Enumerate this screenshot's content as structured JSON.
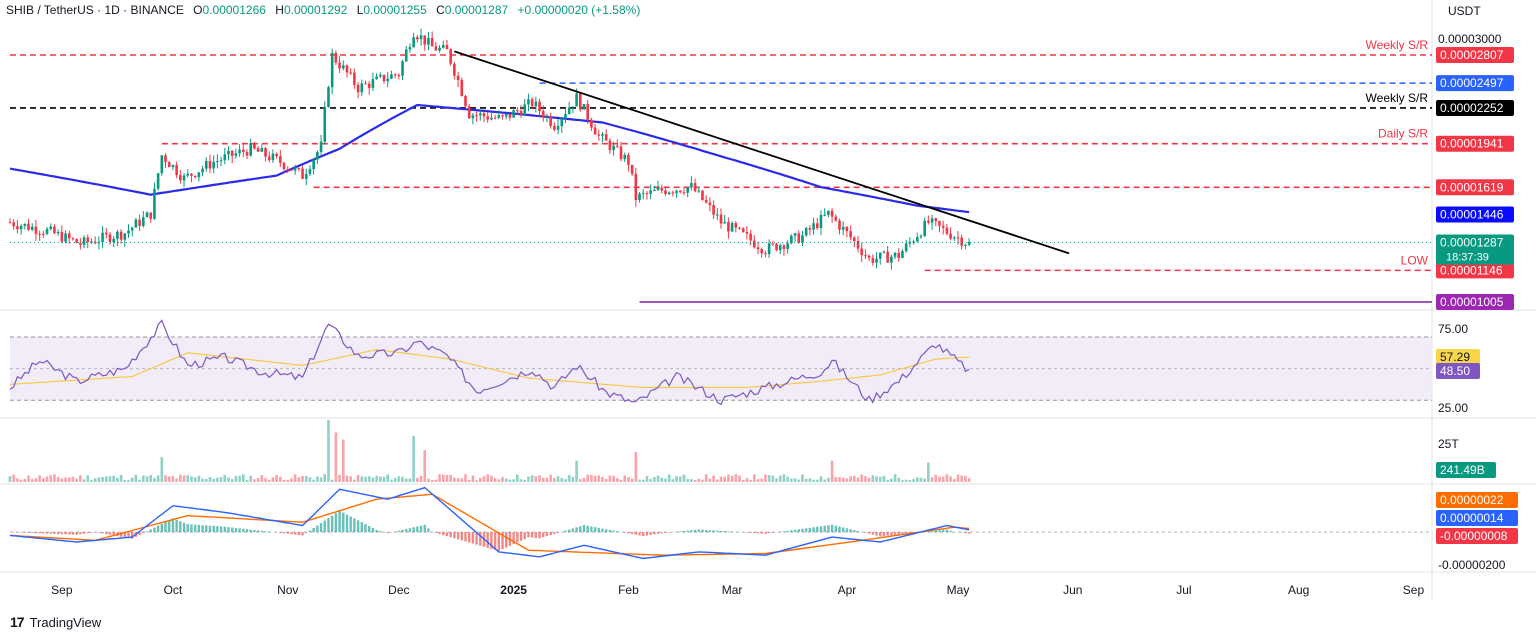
{
  "header": {
    "symbol": "SHIB / TetherUS · 1D · BINANCE",
    "o_label": "O",
    "o": "0.00001266",
    "h_label": "H",
    "h": "0.00001292",
    "l_label": "L",
    "l": "0.00001255",
    "c_label": "C",
    "c": "0.00001287",
    "change": "+0.00000020 (+1.58%)"
  },
  "currency": "USDT",
  "branding": "TradingView",
  "colors": {
    "up": "#089981",
    "down": "#f23645",
    "sma": "#2a2ae8",
    "trend": "#000000",
    "blue_level": "#2962ff",
    "low_level": "#7b1fa2",
    "rsi": "#7e57c2",
    "rsi_ma": "#f7c948",
    "macd": "#2962ff",
    "signal": "#ff6d00"
  },
  "chart_data": {
    "type": "candlestick",
    "x_axis": {
      "labels": [
        "Sep",
        "Oct",
        "Nov",
        "Dec",
        "2025",
        "Feb",
        "Mar",
        "Apr",
        "May",
        "Jun",
        "Jul",
        "Aug",
        "Sep"
      ],
      "bold_label": "2025",
      "start": "2024-08-18",
      "end": "2025-09-06"
    },
    "y_axis": {
      "scale": "log",
      "ticks": [
        "0.00003000"
      ],
      "range": [
        9.8e-06,
        3.22e-05
      ]
    },
    "price_anchors": [
      [
        "2024-08-18",
        1.4e-05
      ],
      [
        "2024-08-28",
        1.35e-05
      ],
      [
        "2024-09-06",
        1.28e-05
      ],
      [
        "2024-09-18",
        1.34e-05
      ],
      [
        "2024-09-25",
        1.45e-05
      ],
      [
        "2024-09-28",
        1.85e-05
      ],
      [
        "2024-10-04",
        1.68e-05
      ],
      [
        "2024-10-12",
        1.8e-05
      ],
      [
        "2024-10-22",
        1.9e-05
      ],
      [
        "2024-10-30",
        1.8e-05
      ],
      [
        "2024-11-05",
        1.7e-05
      ],
      [
        "2024-11-10",
        1.92e-05
      ],
      [
        "2024-11-13",
        2.8e-05
      ],
      [
        "2024-11-20",
        2.45e-05
      ],
      [
        "2024-11-27",
        2.55e-05
      ],
      [
        "2024-12-01",
        2.6e-05
      ],
      [
        "2024-12-05",
        3.1e-05
      ],
      [
        "2024-12-10",
        2.9e-05
      ],
      [
        "2024-12-14",
        2.85e-05
      ],
      [
        "2024-12-20",
        2.2e-05
      ],
      [
        "2024-12-29",
        2.15e-05
      ],
      [
        "2025-01-06",
        2.3e-05
      ],
      [
        "2025-01-12",
        2.1e-05
      ],
      [
        "2025-01-18",
        2.35e-05
      ],
      [
        "2025-01-24",
        2e-05
      ],
      [
        "2025-02-01",
        1.8e-05
      ],
      [
        "2025-02-03",
        1.55e-05
      ],
      [
        "2025-02-10",
        1.6e-05
      ],
      [
        "2025-02-18",
        1.62e-05
      ],
      [
        "2025-02-26",
        1.4e-05
      ],
      [
        "2025-03-10",
        1.25e-05
      ],
      [
        "2025-03-20",
        1.32e-05
      ],
      [
        "2025-03-27",
        1.45e-05
      ],
      [
        "2025-04-07",
        1.2e-05
      ],
      [
        "2025-04-15",
        1.22e-05
      ],
      [
        "2025-04-23",
        1.4e-05
      ],
      [
        "2025-05-04",
        1.28e-05
      ]
    ],
    "sma200_anchors": [
      [
        "2024-08-18",
        1.75e-05
      ],
      [
        "2024-09-25",
        1.57e-05
      ],
      [
        "2024-10-29",
        1.7e-05
      ],
      [
        "2024-11-15",
        1.9e-05
      ],
      [
        "2024-12-06",
        2.28e-05
      ],
      [
        "2025-01-01",
        2.2e-05
      ],
      [
        "2025-01-25",
        2.12e-05
      ],
      [
        "2025-02-25",
        1.85e-05
      ],
      [
        "2025-03-25",
        1.62e-05
      ],
      [
        "2025-04-20",
        1.5e-05
      ],
      [
        "2025-05-04",
        1.46e-05
      ]
    ],
    "trendline": {
      "from": [
        "2024-12-16",
        2.85e-05
      ],
      "to": [
        "2025-05-31",
        1.23e-05
      ],
      "color": "#000000"
    },
    "levels": [
      {
        "value": 2.807e-05,
        "label": "Weekly S/R",
        "price_label": "0.00002807",
        "color": "#f23645",
        "style": "dashed",
        "from": "2024-08-18",
        "label_bg": "#f23645"
      },
      {
        "value": 2.497e-05,
        "label": "",
        "price_label": "0.00002497",
        "color": "#2962ff",
        "style": "dashed",
        "from": "2025-01-08",
        "label_bg": "#2962ff"
      },
      {
        "value": 2.252e-05,
        "label": "Weekly S/R",
        "price_label": "0.00002252",
        "color": "#000000",
        "style": "dashed",
        "from": "2024-08-18",
        "label_bg": "#000000"
      },
      {
        "value": 1.941e-05,
        "label": "Daily S/R",
        "price_label": "0.00001941",
        "color": "#f23645",
        "style": "dashed",
        "from": "2024-09-28",
        "label_bg": "#f23645"
      },
      {
        "value": 1.619e-05,
        "label": "",
        "price_label": "0.00001619",
        "color": "#f23645",
        "style": "dashed",
        "from": "2024-11-08",
        "label_bg": "#f23645"
      },
      {
        "value": 1.146e-05,
        "label": "LOW",
        "price_label": "0.00001146",
        "color": "#f23645",
        "style": "dashed",
        "from": "2025-04-22",
        "label_bg": "#f23645"
      },
      {
        "value": 1.005e-05,
        "label": "",
        "price_label": "0.00001005",
        "color": "#7b1fa2",
        "style": "solid",
        "from": "2025-02-04",
        "label_bg": "#9c27b0"
      }
    ],
    "badges": [
      {
        "value": 1.446e-05,
        "text": "0.00001446",
        "bg": "#0b0bff"
      },
      {
        "value": 1.287e-05,
        "text": "0.00001287",
        "sub": "18:37:39",
        "bg": "#089981"
      }
    ],
    "rsi": {
      "band": [
        30,
        70
      ],
      "ticks": [
        "75.00",
        "25.00"
      ],
      "tick_values": [
        75,
        25
      ],
      "value": "48.50",
      "ma_value": "57.29",
      "anchors": [
        [
          "2024-08-18",
          38
        ],
        [
          "2024-08-26",
          55
        ],
        [
          "2024-09-05",
          42
        ],
        [
          "2024-09-18",
          50
        ],
        [
          "2024-09-28",
          78
        ],
        [
          "2024-10-05",
          52
        ],
        [
          "2024-10-15",
          57
        ],
        [
          "2024-10-25",
          48
        ],
        [
          "2024-11-05",
          44
        ],
        [
          "2024-11-12",
          78
        ],
        [
          "2024-11-20",
          58
        ],
        [
          "2024-12-01",
          60
        ],
        [
          "2024-12-06",
          67
        ],
        [
          "2024-12-14",
          58
        ],
        [
          "2024-12-22",
          36
        ],
        [
          "2025-01-06",
          50
        ],
        [
          "2025-01-12",
          38
        ],
        [
          "2025-01-18",
          52
        ],
        [
          "2025-01-26",
          35
        ],
        [
          "2025-02-03",
          28
        ],
        [
          "2025-02-14",
          45
        ],
        [
          "2025-02-26",
          30
        ],
        [
          "2025-03-10",
          38
        ],
        [
          "2025-03-25",
          48
        ],
        [
          "2025-03-28",
          55
        ],
        [
          "2025-04-07",
          30
        ],
        [
          "2025-04-15",
          42
        ],
        [
          "2025-04-25",
          66
        ],
        [
          "2025-05-04",
          48.5
        ]
      ],
      "ma_anchors": [
        [
          "2024-08-18",
          40
        ],
        [
          "2024-09-20",
          45
        ],
        [
          "2024-10-05",
          60
        ],
        [
          "2024-11-05",
          52
        ],
        [
          "2024-11-25",
          62
        ],
        [
          "2024-12-15",
          56
        ],
        [
          "2025-01-05",
          44
        ],
        [
          "2025-02-05",
          38
        ],
        [
          "2025-03-05",
          38
        ],
        [
          "2025-03-25",
          42
        ],
        [
          "2025-04-10",
          46
        ],
        [
          "2025-04-25",
          56
        ],
        [
          "2025-05-04",
          57.29
        ]
      ]
    },
    "volume": {
      "tick": "25T",
      "value_label": "241.49B",
      "max": 35,
      "spikes": [
        [
          "2024-09-28",
          14
        ],
        [
          "2024-11-12",
          35
        ],
        [
          "2024-11-14",
          28
        ],
        [
          "2024-11-16",
          24
        ],
        [
          "2024-12-05",
          26
        ],
        [
          "2024-12-08",
          18
        ],
        [
          "2025-02-03",
          17
        ],
        [
          "2025-01-18",
          12
        ],
        [
          "2025-03-28",
          12
        ],
        [
          "2025-04-23",
          11
        ]
      ]
    },
    "macd": {
      "values": [
        {
          "text": "0.00000022",
          "bg": "#ff6d00"
        },
        {
          "text": "0.00000014",
          "bg": "#2962ff"
        },
        {
          "text": "-0.00000008",
          "bg": "#f23645"
        }
      ],
      "tick": "-0.00000200",
      "tick_value": -2e-06,
      "range": [
        -2.3e-06,
        2.8e-06
      ],
      "macd_anchors": [
        [
          "2024-08-18",
          -2e-07
        ],
        [
          "2024-09-05",
          -6e-07
        ],
        [
          "2024-09-20",
          -3e-07
        ],
        [
          "2024-10-01",
          1.6e-06
        ],
        [
          "2024-10-15",
          1.2e-06
        ],
        [
          "2024-11-05",
          4e-07
        ],
        [
          "2024-11-15",
          2.6e-06
        ],
        [
          "2024-11-28",
          2e-06
        ],
        [
          "2024-12-08",
          2.7e-06
        ],
        [
          "2024-12-28",
          -1.2e-06
        ],
        [
          "2025-01-08",
          -1.5e-06
        ],
        [
          "2025-01-20",
          -8e-07
        ],
        [
          "2025-02-05",
          -1.6e-06
        ],
        [
          "2025-02-20",
          -1.2e-06
        ],
        [
          "2025-03-10",
          -1.4e-06
        ],
        [
          "2025-03-28",
          -3e-07
        ],
        [
          "2025-04-10",
          -6e-07
        ],
        [
          "2025-04-28",
          4e-07
        ],
        [
          "2025-05-04",
          1.4e-07
        ]
      ],
      "signal_anchors": [
        [
          "2024-08-18",
          -2e-07
        ],
        [
          "2024-09-10",
          -5e-07
        ],
        [
          "2024-10-05",
          1e-06
        ],
        [
          "2024-11-05",
          6e-07
        ],
        [
          "2024-11-25",
          2e-06
        ],
        [
          "2024-12-10",
          2.3e-06
        ],
        [
          "2025-01-05",
          -1.1e-06
        ],
        [
          "2025-02-10",
          -1.4e-06
        ],
        [
          "2025-03-10",
          -1.3e-06
        ],
        [
          "2025-04-05",
          -5e-07
        ],
        [
          "2025-04-30",
          3e-07
        ],
        [
          "2025-05-04",
          2.2e-07
        ]
      ]
    }
  }
}
